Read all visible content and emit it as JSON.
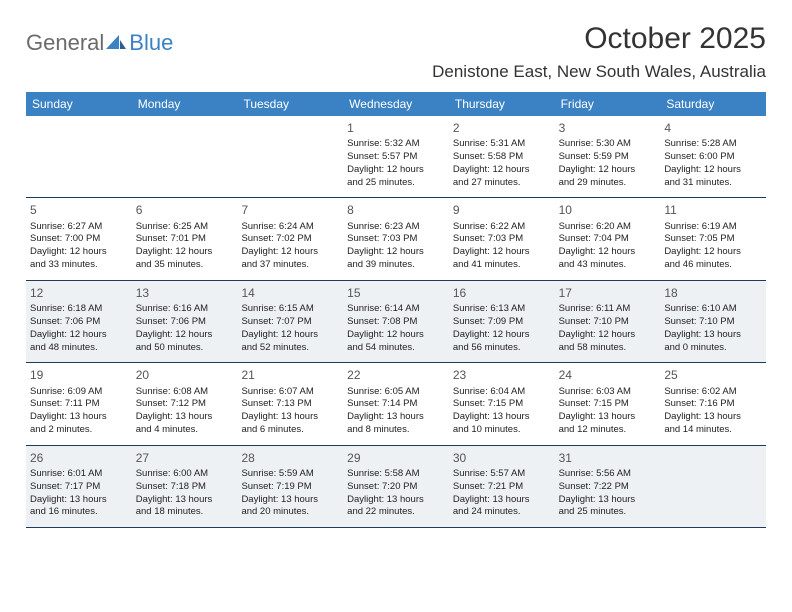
{
  "logo": {
    "text1": "General",
    "text2": "Blue"
  },
  "title": "October 2025",
  "location": "Denistone East, New South Wales, Australia",
  "theme": {
    "header_bg": "#3b82c4",
    "header_text": "#ffffff",
    "alt_row_bg": "#eef1f3",
    "border_color": "#1f3a5f",
    "text_color": "#222222",
    "title_color": "#333333",
    "logo_gray": "#6b6b6b",
    "logo_blue": "#3b82c4",
    "title_fontsize": 30,
    "location_fontsize": 17,
    "cell_fontsize": 9.5,
    "daynum_fontsize": 12
  },
  "day_names": [
    "Sunday",
    "Monday",
    "Tuesday",
    "Wednesday",
    "Thursday",
    "Friday",
    "Saturday"
  ],
  "weeks": [
    {
      "alt": false,
      "days": [
        null,
        null,
        null,
        {
          "n": "1",
          "sunrise": "5:32 AM",
          "sunset": "5:57 PM",
          "dl_h": 12,
          "dl_m": 25
        },
        {
          "n": "2",
          "sunrise": "5:31 AM",
          "sunset": "5:58 PM",
          "dl_h": 12,
          "dl_m": 27
        },
        {
          "n": "3",
          "sunrise": "5:30 AM",
          "sunset": "5:59 PM",
          "dl_h": 12,
          "dl_m": 29
        },
        {
          "n": "4",
          "sunrise": "5:28 AM",
          "sunset": "6:00 PM",
          "dl_h": 12,
          "dl_m": 31
        }
      ]
    },
    {
      "alt": false,
      "days": [
        {
          "n": "5",
          "sunrise": "6:27 AM",
          "sunset": "7:00 PM",
          "dl_h": 12,
          "dl_m": 33
        },
        {
          "n": "6",
          "sunrise": "6:25 AM",
          "sunset": "7:01 PM",
          "dl_h": 12,
          "dl_m": 35
        },
        {
          "n": "7",
          "sunrise": "6:24 AM",
          "sunset": "7:02 PM",
          "dl_h": 12,
          "dl_m": 37
        },
        {
          "n": "8",
          "sunrise": "6:23 AM",
          "sunset": "7:03 PM",
          "dl_h": 12,
          "dl_m": 39
        },
        {
          "n": "9",
          "sunrise": "6:22 AM",
          "sunset": "7:03 PM",
          "dl_h": 12,
          "dl_m": 41
        },
        {
          "n": "10",
          "sunrise": "6:20 AM",
          "sunset": "7:04 PM",
          "dl_h": 12,
          "dl_m": 43
        },
        {
          "n": "11",
          "sunrise": "6:19 AM",
          "sunset": "7:05 PM",
          "dl_h": 12,
          "dl_m": 46
        }
      ]
    },
    {
      "alt": true,
      "days": [
        {
          "n": "12",
          "sunrise": "6:18 AM",
          "sunset": "7:06 PM",
          "dl_h": 12,
          "dl_m": 48
        },
        {
          "n": "13",
          "sunrise": "6:16 AM",
          "sunset": "7:06 PM",
          "dl_h": 12,
          "dl_m": 50
        },
        {
          "n": "14",
          "sunrise": "6:15 AM",
          "sunset": "7:07 PM",
          "dl_h": 12,
          "dl_m": 52
        },
        {
          "n": "15",
          "sunrise": "6:14 AM",
          "sunset": "7:08 PM",
          "dl_h": 12,
          "dl_m": 54
        },
        {
          "n": "16",
          "sunrise": "6:13 AM",
          "sunset": "7:09 PM",
          "dl_h": 12,
          "dl_m": 56
        },
        {
          "n": "17",
          "sunrise": "6:11 AM",
          "sunset": "7:10 PM",
          "dl_h": 12,
          "dl_m": 58
        },
        {
          "n": "18",
          "sunrise": "6:10 AM",
          "sunset": "7:10 PM",
          "dl_h": 13,
          "dl_m": 0
        }
      ]
    },
    {
      "alt": false,
      "days": [
        {
          "n": "19",
          "sunrise": "6:09 AM",
          "sunset": "7:11 PM",
          "dl_h": 13,
          "dl_m": 2
        },
        {
          "n": "20",
          "sunrise": "6:08 AM",
          "sunset": "7:12 PM",
          "dl_h": 13,
          "dl_m": 4
        },
        {
          "n": "21",
          "sunrise": "6:07 AM",
          "sunset": "7:13 PM",
          "dl_h": 13,
          "dl_m": 6
        },
        {
          "n": "22",
          "sunrise": "6:05 AM",
          "sunset": "7:14 PM",
          "dl_h": 13,
          "dl_m": 8
        },
        {
          "n": "23",
          "sunrise": "6:04 AM",
          "sunset": "7:15 PM",
          "dl_h": 13,
          "dl_m": 10
        },
        {
          "n": "24",
          "sunrise": "6:03 AM",
          "sunset": "7:15 PM",
          "dl_h": 13,
          "dl_m": 12
        },
        {
          "n": "25",
          "sunrise": "6:02 AM",
          "sunset": "7:16 PM",
          "dl_h": 13,
          "dl_m": 14
        }
      ]
    },
    {
      "alt": true,
      "days": [
        {
          "n": "26",
          "sunrise": "6:01 AM",
          "sunset": "7:17 PM",
          "dl_h": 13,
          "dl_m": 16
        },
        {
          "n": "27",
          "sunrise": "6:00 AM",
          "sunset": "7:18 PM",
          "dl_h": 13,
          "dl_m": 18
        },
        {
          "n": "28",
          "sunrise": "5:59 AM",
          "sunset": "7:19 PM",
          "dl_h": 13,
          "dl_m": 20
        },
        {
          "n": "29",
          "sunrise": "5:58 AM",
          "sunset": "7:20 PM",
          "dl_h": 13,
          "dl_m": 22
        },
        {
          "n": "30",
          "sunrise": "5:57 AM",
          "sunset": "7:21 PM",
          "dl_h": 13,
          "dl_m": 24
        },
        {
          "n": "31",
          "sunrise": "5:56 AM",
          "sunset": "7:22 PM",
          "dl_h": 13,
          "dl_m": 25
        },
        null
      ]
    }
  ]
}
